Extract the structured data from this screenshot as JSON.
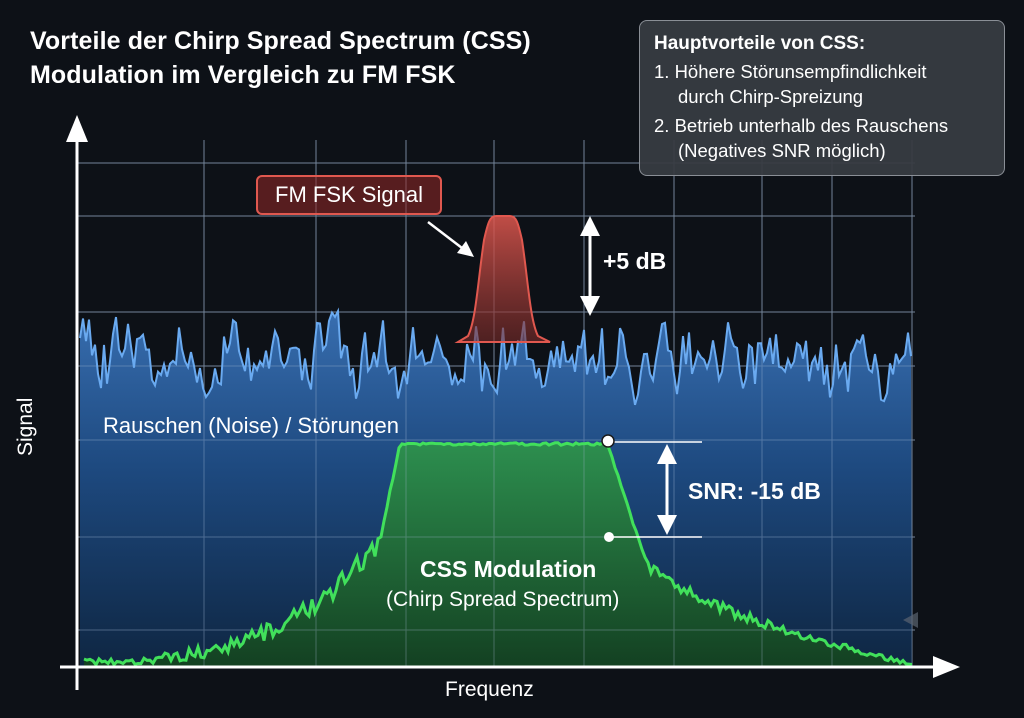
{
  "title": {
    "line1": "Vorteile der Chirp Spread Spectrum (CSS)",
    "line2": "Modulation im Vergleich zu FM FSK"
  },
  "info_box": {
    "heading": "Hauptvorteile von CSS:",
    "items": [
      {
        "line1": "1. Höhere Störunsempfindlichkeit",
        "line2": "durch Chirp-Spreizung"
      },
      {
        "line1": "2. Betrieb unterhalb des Rauschens",
        "line2": "(Negatives SNR möglich)"
      }
    ]
  },
  "axes": {
    "x_label": "Frequenz",
    "y_label": "Signal"
  },
  "labels": {
    "fsk_tag": "FM FSK Signal",
    "fsk_margin": "+5 dB",
    "noise": "Rauschen (Noise) / Störungen",
    "snr": "SNR: -15 dB",
    "css_title": "CSS Modulation",
    "css_subtitle": "(Chirp Spread Spectrum)"
  },
  "colors": {
    "background": "#0d1117",
    "noise": "#5fa2e6",
    "noise_fill": "#2a5a96",
    "css": "#3ddc57",
    "css_fill": "#1f7a35",
    "fsk": "#e0584f",
    "grid": "#7f8fa3",
    "text": "#ffffff"
  },
  "icons": [
    "y-axis-arrow",
    "x-axis-arrow",
    "double-arrow",
    "callout-arrow",
    "marker-dot"
  ]
}
